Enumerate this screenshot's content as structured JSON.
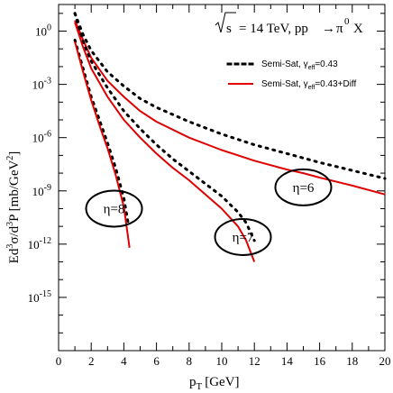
{
  "chart_data": {
    "type": "line",
    "title": "√s = 14 TeV, pp → π⁰ X",
    "title_parts": {
      "sqrt": "s",
      "rest": "= 14 TeV, pp",
      "arrow": "→",
      "pi": "π",
      "zero": "0",
      "x": "X"
    },
    "xlabel": "pT [GeV]",
    "xlabel_parts": {
      "p": "p",
      "T": "T",
      "unit": "[GeV]"
    },
    "ylabel": "Ed³σ/d³P [mb/GeV²]",
    "ylabel_parts": {
      "a": "Ed",
      "b": "3",
      "c": "σ/d",
      "d": "3",
      "e": "P [mb/GeV",
      "f": "2",
      "g": "]"
    },
    "xlim": [
      0,
      20
    ],
    "ylim_log10": [
      -18,
      1.5
    ],
    "yscale": "log",
    "grid": false,
    "legend_position": "top-right",
    "x_ticks": [
      0,
      2,
      4,
      6,
      8,
      10,
      12,
      14,
      16,
      18,
      20
    ],
    "x_tick_labels": [
      "0",
      "2",
      "4",
      "6",
      "8",
      "10",
      "12",
      "14",
      "16",
      "18",
      "20"
    ],
    "y_ticks_log10": [
      0,
      -3,
      -6,
      -9,
      -12,
      -15
    ],
    "y_tick_labels": [
      {
        "base": "10",
        "exp": "0"
      },
      {
        "base": "10",
        "exp": "-3"
      },
      {
        "base": "10",
        "exp": "-6"
      },
      {
        "base": "10",
        "exp": "-9"
      },
      {
        "base": "10",
        "exp": "-12"
      },
      {
        "base": "10",
        "exp": "-15"
      }
    ],
    "legend": [
      {
        "label_main": "Semi-Sat, γ",
        "label_sub": "eff",
        "label_rest": "=0.43",
        "color": "#000000",
        "style": "dotted"
      },
      {
        "label_main": "Semi-Sat, γ",
        "label_sub": "eff",
        "label_rest": "=0.43+Diff",
        "color": "#e00000",
        "style": "solid"
      }
    ],
    "series": [
      {
        "name": "Semi-Sat, γeff=0.43",
        "group": "η=6",
        "style": "dotted",
        "color": "#000000",
        "points": [
          [
            1,
            1.0
          ],
          [
            1.5,
            -0.2
          ],
          [
            2,
            -1.1
          ],
          [
            3,
            -2.3
          ],
          [
            4,
            -3.1
          ],
          [
            5,
            -3.8
          ],
          [
            6,
            -4.3
          ],
          [
            8,
            -5.1
          ],
          [
            10,
            -5.8
          ],
          [
            12,
            -6.4
          ],
          [
            14,
            -6.9
          ],
          [
            15,
            -7.15
          ],
          [
            16,
            -7.4
          ],
          [
            18,
            -7.85
          ],
          [
            20,
            -8.3
          ]
        ]
      },
      {
        "name": "Semi-Sat, γeff=0.43+Diff",
        "group": "η=6",
        "style": "solid",
        "color": "#e00000",
        "points": [
          [
            1,
            0.6
          ],
          [
            1.5,
            -0.5
          ],
          [
            2,
            -1.5
          ],
          [
            3,
            -2.8
          ],
          [
            4,
            -3.7
          ],
          [
            5,
            -4.5
          ],
          [
            6,
            -5.1
          ],
          [
            8,
            -6.0
          ],
          [
            10,
            -6.7
          ],
          [
            12,
            -7.3
          ],
          [
            14,
            -7.8
          ],
          [
            15,
            -8.0
          ],
          [
            16,
            -8.25
          ],
          [
            18,
            -8.7
          ],
          [
            20,
            -9.2
          ]
        ]
      },
      {
        "name": "Semi-Sat, γeff=0.43",
        "group": "η=7",
        "style": "dotted",
        "color": "#000000",
        "points": [
          [
            1,
            1.0
          ],
          [
            1.5,
            -0.6
          ],
          [
            2,
            -1.7
          ],
          [
            3,
            -3.2
          ],
          [
            4,
            -4.5
          ],
          [
            5,
            -5.5
          ],
          [
            6,
            -6.4
          ],
          [
            7,
            -7.2
          ],
          [
            8,
            -7.9
          ],
          [
            9,
            -8.6
          ],
          [
            10,
            -9.3
          ],
          [
            11,
            -10.2
          ],
          [
            11.5,
            -10.8
          ],
          [
            12,
            -11.8
          ]
        ]
      },
      {
        "name": "Semi-Sat, γeff=0.43+Diff",
        "group": "η=7",
        "style": "solid",
        "color": "#e00000",
        "points": [
          [
            1,
            0.5
          ],
          [
            1.5,
            -0.9
          ],
          [
            2,
            -2.1
          ],
          [
            3,
            -3.7
          ],
          [
            4,
            -5.0
          ],
          [
            5,
            -6.0
          ],
          [
            6,
            -6.9
          ],
          [
            7,
            -7.7
          ],
          [
            8,
            -8.4
          ],
          [
            9,
            -9.2
          ],
          [
            10,
            -10.0
          ],
          [
            11,
            -11.0
          ],
          [
            11.5,
            -11.8
          ],
          [
            12,
            -13.0
          ]
        ]
      },
      {
        "name": "Semi-Sat, γeff=0.43",
        "group": "η=8",
        "style": "dotted",
        "color": "#000000",
        "points": [
          [
            1,
            -0.5
          ],
          [
            1.5,
            -2.1
          ],
          [
            2,
            -3.7
          ],
          [
            2.5,
            -5.0
          ],
          [
            3,
            -6.3
          ],
          [
            3.5,
            -7.7
          ],
          [
            4,
            -9.4
          ],
          [
            4.3,
            -11.0
          ]
        ]
      },
      {
        "name": "Semi-Sat, γeff=0.43+Diff",
        "group": "η=8",
        "style": "solid",
        "color": "#e00000",
        "points": [
          [
            1,
            -0.6
          ],
          [
            1.5,
            -2.3
          ],
          [
            2,
            -3.9
          ],
          [
            2.5,
            -5.3
          ],
          [
            3,
            -6.6
          ],
          [
            3.5,
            -8.1
          ],
          [
            4,
            -9.9
          ],
          [
            4.35,
            -12.2
          ]
        ]
      }
    ],
    "annotations": [
      {
        "label": "η=6",
        "x": 15,
        "y_log10": -8.8
      },
      {
        "label": "η=7",
        "x": 11.3,
        "y_log10": -11.6
      },
      {
        "label": "η=8",
        "x": 3.4,
        "y_log10": -10.0
      }
    ]
  }
}
